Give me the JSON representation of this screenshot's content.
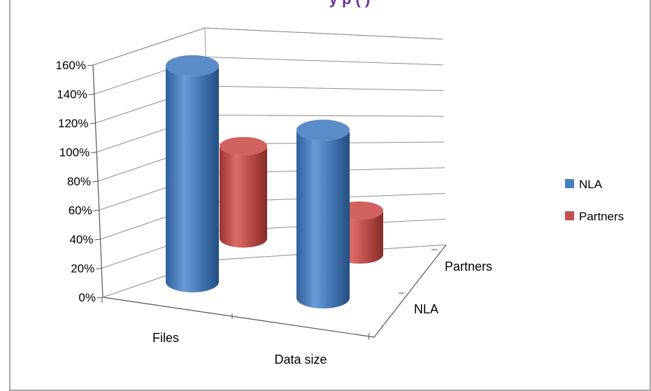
{
  "chart_data": {
    "type": "bar",
    "style": "3d-cylinder",
    "title_fragment": "y p      ( )",
    "categories": [
      "Files",
      "Data size"
    ],
    "depth_categories": [
      "NLA",
      "Partners"
    ],
    "series": [
      {
        "name": "NLA",
        "color": "#4a7ebb",
        "values": [
          1.52,
          1.18
        ]
      },
      {
        "name": "Partners",
        "color": "#c0504d",
        "values": [
          0.65,
          0.31
        ]
      }
    ],
    "ylim": [
      0,
      1.6
    ],
    "yticks": [
      "0%",
      "20%",
      "40%",
      "60%",
      "80%",
      "100%",
      "120%",
      "140%",
      "160%"
    ],
    "grid": true,
    "legend": "right"
  }
}
